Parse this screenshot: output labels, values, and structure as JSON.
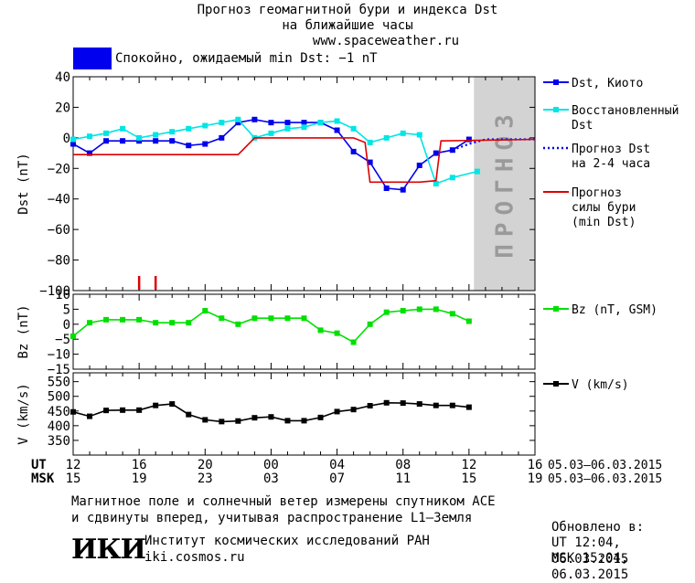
{
  "header": {
    "title_line1": "Прогноз геомагнитной бури и индекса Dst",
    "title_line2": "на ближайшие часы",
    "website": "www.spaceweather.ru"
  },
  "status": {
    "label": "Спокойно, ожидаемый min Dst: −1 nT",
    "color": "#0000ee"
  },
  "forecast_zone_label": "ПРОГНОЗ",
  "time_axis": {
    "ut_label": "UT",
    "msk_label": "MSK",
    "ut_ticks": [
      "12",
      "16",
      "20",
      "00",
      "04",
      "08",
      "12",
      "16"
    ],
    "msk_ticks": [
      "15",
      "19",
      "23",
      "03",
      "07",
      "11",
      "15",
      "19"
    ],
    "date_range_ut": "05.03–06.03.2015",
    "date_range_msk": "05.03–06.03.2015"
  },
  "footer": {
    "note_line1": "Магнитное поле и солнечный ветер измерены спутником ACE",
    "note_line2": "и сдвинуты вперед, учитывая распространение L1–Земля",
    "institute": "Институт космических исследований РАН",
    "institute_site": "iki.cosmos.ru",
    "logo_text": "ИКИ",
    "updated_label": "Обновлено в:",
    "updated_ut": "UT   12:04, 06.03.2015",
    "updated_msk": "MSK 15:04, 06.03.2015"
  },
  "chart_data": [
    {
      "type": "line",
      "ylabel": "Dst (nT)",
      "ylim": [
        -100,
        40
      ],
      "yticks": [
        40,
        20,
        0,
        -20,
        -40,
        -60,
        -80,
        -100
      ],
      "x_unit": "hours since 12 UT 05.03.2015",
      "xlim": [
        0,
        28
      ],
      "legend_placement": "right",
      "series": [
        {
          "name": "Dst, Киото",
          "color": "#0000ee",
          "marker": "square",
          "x": [
            0,
            1,
            2,
            3,
            4,
            5,
            6,
            7,
            8,
            9,
            10,
            11,
            12,
            13,
            14,
            15,
            16,
            17,
            18,
            19,
            20,
            21,
            22,
            23,
            24
          ],
          "y": [
            -4,
            -10,
            -2,
            -2,
            -2,
            -2,
            -2,
            -5,
            -4,
            0,
            10,
            12,
            10,
            10,
            10,
            10,
            5,
            -9,
            -16,
            -33,
            -34,
            -18,
            -10,
            -8,
            -1
          ]
        },
        {
          "name": "Восстановленный Dst",
          "color": "#00e5e5",
          "marker": "square",
          "x": [
            0,
            1,
            2,
            3,
            4,
            5,
            6,
            7,
            8,
            9,
            10,
            11,
            12,
            13,
            14,
            15,
            16,
            17,
            18,
            19,
            20,
            21,
            22,
            23,
            24.5
          ],
          "y": [
            -1,
            1,
            3,
            6,
            0,
            2,
            4,
            6,
            8,
            10,
            12,
            0,
            3,
            6,
            7,
            10,
            11,
            6,
            -3,
            0,
            3,
            2,
            -30,
            -26,
            -22
          ]
        },
        {
          "name": "Прогноз Dst на 2-4 часа",
          "color": "#0000ee",
          "dashed": true,
          "x": [
            23,
            24,
            25,
            26,
            27,
            28
          ],
          "y": [
            -8,
            -4,
            -1,
            -1,
            -1,
            -1
          ]
        },
        {
          "name": "Прогноз силы бури (min Dst)",
          "color": "#dd0000",
          "x": [
            0,
            10,
            11,
            17,
            17.7,
            18,
            19.8,
            20.5,
            21,
            22,
            22.3,
            28
          ],
          "y": [
            -11,
            -11,
            0,
            0,
            -3,
            -29,
            -29,
            -29,
            -29,
            -28,
            -2,
            -1
          ]
        }
      ],
      "storm_markers_x": [
        4,
        5
      ]
    },
    {
      "type": "line",
      "ylabel": "Bz (nT)",
      "ylim": [
        -15,
        10
      ],
      "yticks": [
        10,
        5,
        0,
        -5,
        -10,
        -15
      ],
      "xlim": [
        0,
        28
      ],
      "series": [
        {
          "name": "Bz (nT, GSM)",
          "color": "#00e000",
          "marker": "square",
          "x": [
            0,
            1,
            2,
            3,
            4,
            5,
            6,
            7,
            8,
            9,
            10,
            11,
            12,
            13,
            14,
            15,
            16,
            17,
            18,
            19,
            20,
            21,
            22,
            23,
            24
          ],
          "y": [
            -4,
            0.5,
            1.5,
            1.5,
            1.5,
            0.5,
            0.5,
            0.5,
            4.5,
            2,
            0,
            2,
            2,
            2,
            2,
            -2,
            -3,
            -6,
            0,
            4,
            4.5,
            5,
            5,
            3.5,
            1
          ]
        }
      ]
    },
    {
      "type": "line",
      "ylabel": "V (km/s)",
      "ylim": [
        300,
        580
      ],
      "yticks": [
        550,
        500,
        450,
        400,
        350
      ],
      "xlim": [
        0,
        28
      ],
      "series": [
        {
          "name": "V (km/s)",
          "color": "#000000",
          "marker": "square",
          "x": [
            0,
            1,
            2,
            3,
            4,
            5,
            6,
            7,
            8,
            9,
            10,
            11,
            12,
            13,
            14,
            15,
            16,
            17,
            18,
            19,
            20,
            21,
            22,
            23,
            24
          ],
          "y": [
            447,
            432,
            452,
            453,
            453,
            469,
            474,
            438,
            420,
            414,
            416,
            427,
            430,
            417,
            417,
            428,
            448,
            455,
            468,
            478,
            477,
            474,
            469,
            469,
            463
          ]
        }
      ]
    }
  ]
}
